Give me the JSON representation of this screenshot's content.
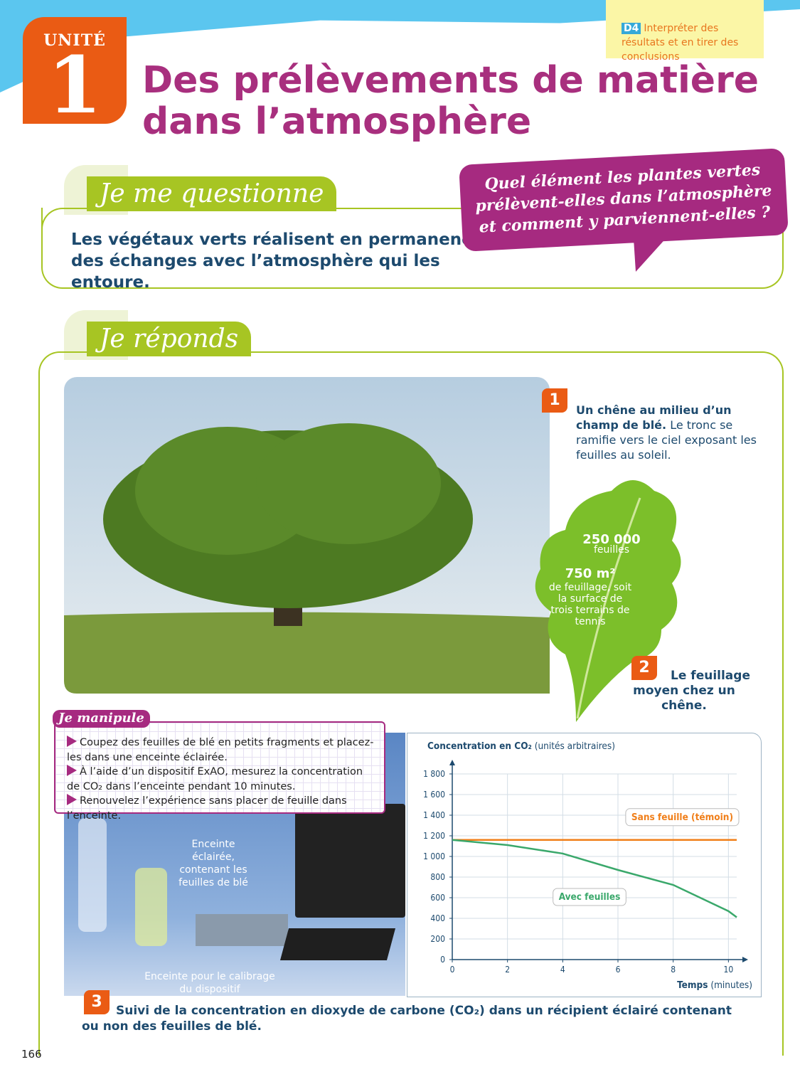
{
  "header": {
    "unit_label": "UNITÉ",
    "unit_number": "1",
    "title": [
      "Des prélèvements de matière",
      "dans l’atmosphère"
    ],
    "competency": {
      "code": "D4",
      "text": "Interpréter des résultats et en tirer des conclusions"
    }
  },
  "question_section": {
    "heading": "Je me questionne",
    "text": "Les végétaux verts réalisent en permanence des échanges avec l’atmosphère qui les entoure.",
    "bubble": "Quel élément les plantes vertes prélèvent-elles dans l’atmosphère et comment y parviennent-elles ?"
  },
  "answer_section": {
    "heading": "Je réponds"
  },
  "doc1": {
    "number": "1",
    "title": "Un chêne au milieu d’un champ de blé.",
    "text": "Le tronc se ramifie vers le ciel exposant les feuilles au soleil."
  },
  "doc2": {
    "number": "2",
    "caption": "Le feuillage moyen chez un chêne.",
    "stats": [
      {
        "value": "250 000",
        "label": "feuilles"
      },
      {
        "value": "750 m²",
        "label": "de feuillage, soit la surface de trois terrains de tennis"
      }
    ]
  },
  "manipulation": {
    "title": "Je manipule",
    "steps": [
      "Coupez des feuilles de blé en petits fragments et placez-les dans une enceinte éclairée.",
      "À l’aide d’un dispositif ExAO, mesurez la concentration de CO₂ dans l’enceinte pendant 10 minutes.",
      "Renouvelez l’expérience sans placer de feuille dans l’enceinte."
    ]
  },
  "doc3": {
    "number": "3",
    "photo_labels": [
      "Enceinte éclairée, contenant les feuilles de blé",
      "Enceinte pour le calibrage du dispositif"
    ],
    "caption": "Suivi de la concentration en dioxyde de carbone (CO₂) dans un récipient éclairé contenant ou non des feuilles de blé.",
    "chart": {
      "type": "line",
      "y_label": "Concentration en CO₂",
      "y_unit": "(unités arbitraires)",
      "x_label": "Temps",
      "x_unit": "(minutes)",
      "x": [
        0,
        2,
        4,
        6,
        8,
        10,
        10.3
      ],
      "xlim": [
        0,
        10.3
      ],
      "xticks": [
        0,
        2,
        4,
        6,
        8,
        10
      ],
      "ylim": [
        0,
        1800
      ],
      "yticks": [
        0,
        200,
        400,
        600,
        800,
        {
          "value": 1000,
          "label": "1 000"
        },
        {
          "value": 1200,
          "label": "1 200"
        },
        {
          "value": 1400,
          "label": "1 400"
        },
        {
          "value": 1600,
          "label": "1 600"
        },
        {
          "value": 1800,
          "label": "1 800"
        }
      ],
      "grid": true,
      "series": [
        {
          "name": "Sans feuille (témoin)",
          "color": "#f07f1a",
          "values": [
            1160,
            1160,
            1160,
            1160,
            1160,
            1160,
            1160
          ]
        },
        {
          "name": "Avec feuilles",
          "color": "#3aa86b",
          "values": [
            1160,
            1110,
            1028,
            869,
            724,
            470,
            410
          ]
        }
      ]
    }
  },
  "page_number": "166"
}
